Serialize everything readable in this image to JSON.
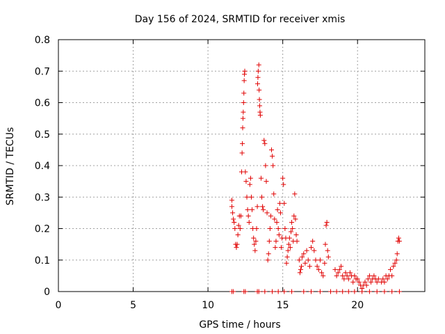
{
  "chart_data": {
    "type": "scatter",
    "title": "Day 156 of 2024, SRMTID for receiver xmis",
    "xlabel": "GPS time / hours",
    "ylabel": "SRMTID / TECUs",
    "xlim": [
      0,
      24.5
    ],
    "ylim": [
      0,
      0.8
    ],
    "x_ticks": [
      0,
      5,
      10,
      15,
      20
    ],
    "x_tick_labels": [
      "0",
      "5",
      "10",
      "15",
      "20"
    ],
    "y_ticks": [
      0,
      0.1,
      0.2,
      0.3,
      0.4,
      0.5,
      0.6,
      0.7,
      0.8
    ],
    "y_tick_labels": [
      "0",
      "0.1",
      "0.2",
      "0.3",
      "0.4",
      "0.5",
      "0.6",
      "0.7",
      "0.8"
    ],
    "grid": true,
    "marker": "+",
    "color": "#e00000",
    "series": [
      {
        "name": "SRMTID",
        "points": [
          [
            11.6,
            0.29
          ],
          [
            11.6,
            0.27
          ],
          [
            11.65,
            0.25
          ],
          [
            11.7,
            0.23
          ],
          [
            11.75,
            0.22
          ],
          [
            11.8,
            0.2
          ],
          [
            11.85,
            0.15
          ],
          [
            11.9,
            0.14
          ],
          [
            11.95,
            0.15
          ],
          [
            12.0,
            0.18
          ],
          [
            12.05,
            0.21
          ],
          [
            12.1,
            0.24
          ],
          [
            12.15,
            0.2
          ],
          [
            12.2,
            0.24
          ],
          [
            12.25,
            0.38
          ],
          [
            12.28,
            0.44
          ],
          [
            12.3,
            0.47
          ],
          [
            12.32,
            0.52
          ],
          [
            12.34,
            0.55
          ],
          [
            12.36,
            0.57
          ],
          [
            12.38,
            0.6
          ],
          [
            12.4,
            0.63
          ],
          [
            12.42,
            0.67
          ],
          [
            12.44,
            0.69
          ],
          [
            12.46,
            0.7
          ],
          [
            12.5,
            0.38
          ],
          [
            12.55,
            0.35
          ],
          [
            12.6,
            0.3
          ],
          [
            12.65,
            0.26
          ],
          [
            12.7,
            0.24
          ],
          [
            12.75,
            0.22
          ],
          [
            12.8,
            0.34
          ],
          [
            12.85,
            0.36
          ],
          [
            12.9,
            0.3
          ],
          [
            12.95,
            0.26
          ],
          [
            13.0,
            0.2
          ],
          [
            13.05,
            0.17
          ],
          [
            13.1,
            0.15
          ],
          [
            13.15,
            0.13
          ],
          [
            13.2,
            0.16
          ],
          [
            13.25,
            0.2
          ],
          [
            13.3,
            0.27
          ],
          [
            13.32,
            0.66
          ],
          [
            13.34,
            0.68
          ],
          [
            13.36,
            0.7
          ],
          [
            13.4,
            0.72
          ],
          [
            13.42,
            0.64
          ],
          [
            13.44,
            0.61
          ],
          [
            13.46,
            0.59
          ],
          [
            13.48,
            0.57
          ],
          [
            13.5,
            0.56
          ],
          [
            13.55,
            0.36
          ],
          [
            13.6,
            0.3
          ],
          [
            13.65,
            0.27
          ],
          [
            13.7,
            0.26
          ],
          [
            13.75,
            0.48
          ],
          [
            13.8,
            0.47
          ],
          [
            13.85,
            0.4
          ],
          [
            13.9,
            0.35
          ],
          [
            13.95,
            0.25
          ],
          [
            14.0,
            0.1
          ],
          [
            14.05,
            0.12
          ],
          [
            14.1,
            0.16
          ],
          [
            14.15,
            0.2
          ],
          [
            14.2,
            0.24
          ],
          [
            14.25,
            0.45
          ],
          [
            14.3,
            0.43
          ],
          [
            14.35,
            0.4
          ],
          [
            14.4,
            0.31
          ],
          [
            14.45,
            0.23
          ],
          [
            14.5,
            0.14
          ],
          [
            14.55,
            0.16
          ],
          [
            14.6,
            0.22
          ],
          [
            14.65,
            0.26
          ],
          [
            14.7,
            0.2
          ],
          [
            14.75,
            0.18
          ],
          [
            14.8,
            0.28
          ],
          [
            14.85,
            0.25
          ],
          [
            14.9,
            0.14
          ],
          [
            14.95,
            0.17
          ],
          [
            15.0,
            0.36
          ],
          [
            15.05,
            0.34
          ],
          [
            15.1,
            0.28
          ],
          [
            15.15,
            0.2
          ],
          [
            15.2,
            0.17
          ],
          [
            15.25,
            0.09
          ],
          [
            15.3,
            0.11
          ],
          [
            15.35,
            0.13
          ],
          [
            15.4,
            0.15
          ],
          [
            15.45,
            0.17
          ],
          [
            15.5,
            0.14
          ],
          [
            15.55,
            0.19
          ],
          [
            15.6,
            0.22
          ],
          [
            15.65,
            0.2
          ],
          [
            15.7,
            0.16
          ],
          [
            15.75,
            0.24
          ],
          [
            15.8,
            0.31
          ],
          [
            15.85,
            0.23
          ],
          [
            15.9,
            0.18
          ],
          [
            15.95,
            0.16
          ],
          [
            16.1,
            0.1
          ],
          [
            16.15,
            0.06
          ],
          [
            16.2,
            0.07
          ],
          [
            16.25,
            0.08
          ],
          [
            16.3,
            0.11
          ],
          [
            16.4,
            0.12
          ],
          [
            16.5,
            0.09
          ],
          [
            16.6,
            0.13
          ],
          [
            16.7,
            0.1
          ],
          [
            16.8,
            0.08
          ],
          [
            16.9,
            0.14
          ],
          [
            17.0,
            0.16
          ],
          [
            17.1,
            0.13
          ],
          [
            17.2,
            0.1
          ],
          [
            17.3,
            0.08
          ],
          [
            17.4,
            0.07
          ],
          [
            17.5,
            0.1
          ],
          [
            17.6,
            0.06
          ],
          [
            17.7,
            0.05
          ],
          [
            17.8,
            0.09
          ],
          [
            17.85,
            0.15
          ],
          [
            17.9,
            0.21
          ],
          [
            17.95,
            0.22
          ],
          [
            18.0,
            0.13
          ],
          [
            18.05,
            0.11
          ],
          [
            18.5,
            0.07
          ],
          [
            18.6,
            0.05
          ],
          [
            18.7,
            0.06
          ],
          [
            18.8,
            0.07
          ],
          [
            18.9,
            0.08
          ],
          [
            19.0,
            0.05
          ],
          [
            19.1,
            0.04
          ],
          [
            19.2,
            0.06
          ],
          [
            19.3,
            0.05
          ],
          [
            19.4,
            0.04
          ],
          [
            19.5,
            0.06
          ],
          [
            19.6,
            0.05
          ],
          [
            19.7,
            0.03
          ],
          [
            19.8,
            0.05
          ],
          [
            19.9,
            0.04
          ],
          [
            20.0,
            0.04
          ],
          [
            20.1,
            0.03
          ],
          [
            20.2,
            0.02
          ],
          [
            20.3,
            0.01
          ],
          [
            20.4,
            0.02
          ],
          [
            20.5,
            0.03
          ],
          [
            20.6,
            0.02
          ],
          [
            20.7,
            0.04
          ],
          [
            20.8,
            0.05
          ],
          [
            20.9,
            0.03
          ],
          [
            21.0,
            0.04
          ],
          [
            21.1,
            0.05
          ],
          [
            21.2,
            0.04
          ],
          [
            21.3,
            0.03
          ],
          [
            21.4,
            0.04
          ],
          [
            21.6,
            0.03
          ],
          [
            21.7,
            0.04
          ],
          [
            21.8,
            0.03
          ],
          [
            21.9,
            0.05
          ],
          [
            22.0,
            0.04
          ],
          [
            22.1,
            0.05
          ],
          [
            22.2,
            0.07
          ],
          [
            22.3,
            0.05
          ],
          [
            22.4,
            0.08
          ],
          [
            22.5,
            0.09
          ],
          [
            22.6,
            0.1
          ],
          [
            22.65,
            0.12
          ],
          [
            22.7,
            0.16
          ],
          [
            22.75,
            0.17
          ],
          [
            22.8,
            0.16
          ],
          [
            11.6,
            0.0
          ],
          [
            11.7,
            0.0
          ],
          [
            12.4,
            0.0
          ],
          [
            12.5,
            0.0
          ],
          [
            13.3,
            0.0
          ],
          [
            13.4,
            0.0
          ],
          [
            13.8,
            0.0
          ],
          [
            14.3,
            0.0
          ],
          [
            14.7,
            0.0
          ],
          [
            15.1,
            0.0
          ],
          [
            15.6,
            0.0
          ],
          [
            16.4,
            0.0
          ],
          [
            16.9,
            0.0
          ],
          [
            17.5,
            0.0
          ],
          [
            18.2,
            0.0
          ],
          [
            18.6,
            0.0
          ],
          [
            19.0,
            0.0
          ],
          [
            19.4,
            0.0
          ],
          [
            19.8,
            0.0
          ],
          [
            20.3,
            0.0
          ],
          [
            20.8,
            0.0
          ],
          [
            21.3,
            0.0
          ],
          [
            21.8,
            0.0
          ],
          [
            22.3,
            0.0
          ],
          [
            22.8,
            0.0
          ]
        ]
      }
    ]
  }
}
